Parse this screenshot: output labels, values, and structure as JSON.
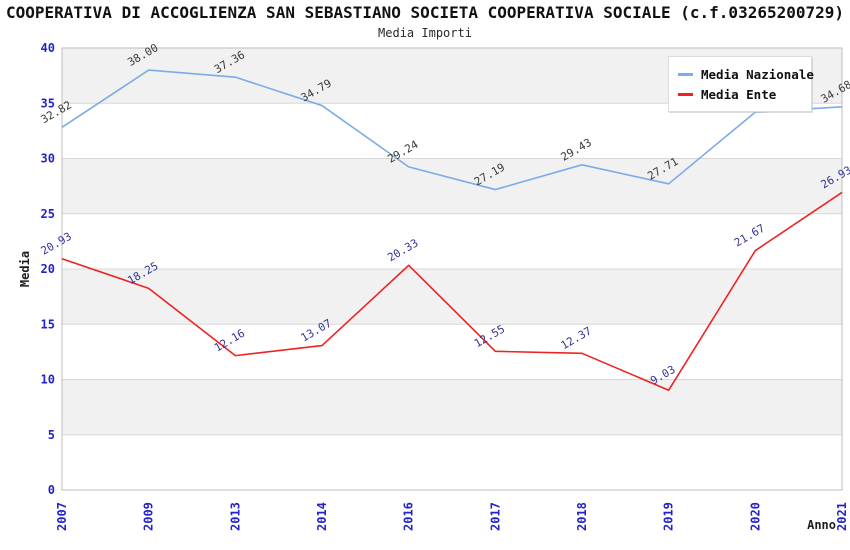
{
  "title": "COOPERATIVA DI ACCOGLIENZA SAN SEBASTIANO SOCIETA COOPERATIVA SOCIALE (c.f.03265200729)",
  "subtitle": "Media Importi",
  "chart_data": {
    "type": "line",
    "title": "Media Importi",
    "categories": [
      "2007",
      "2009",
      "2013",
      "2014",
      "2016",
      "2017",
      "2018",
      "2019",
      "2020",
      "2021"
    ],
    "xlabel": "Anno",
    "ylabel": "Media",
    "ylim": [
      0,
      40
    ],
    "ytick_step": 5,
    "grid": true,
    "legend_position": "top-right",
    "shaded_bands": [
      [
        5,
        10
      ],
      [
        15,
        20
      ],
      [
        25,
        30
      ],
      [
        35,
        40
      ]
    ],
    "series": [
      {
        "name": "Media Nazionale",
        "color": "#79ACE8",
        "label_color": "#3A3A3A",
        "values": [
          32.82,
          38.0,
          37.36,
          34.79,
          29.24,
          27.19,
          29.43,
          27.71,
          34.2,
          34.68
        ]
      },
      {
        "name": "Media Ente",
        "color": "#EE2222",
        "label_color": "#333399",
        "values": [
          20.93,
          18.25,
          12.16,
          13.07,
          20.33,
          12.55,
          12.37,
          9.03,
          21.67,
          26.93
        ]
      }
    ],
    "colors": {
      "tick_label": "#2323CC",
      "band_fill": "#F1F1F1",
      "gridline": "#D8D8D8",
      "plot_border": "#BDBDBD",
      "axis_title": "#1E1E1E"
    }
  }
}
